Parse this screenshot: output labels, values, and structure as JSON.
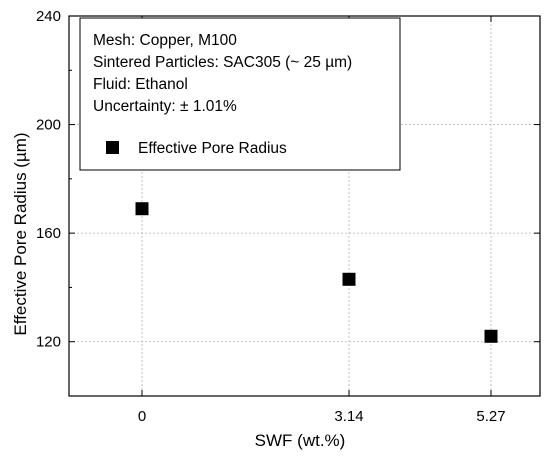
{
  "chart_data": {
    "type": "scatter",
    "title": "",
    "xlabel": "SWF (wt.%)",
    "ylabel": "Effective Pore Radius (µm)",
    "x_scale": "categorical-position",
    "x_ticks": [
      0,
      3.14,
      5.27
    ],
    "x_tick_labels": [
      "0",
      "3.14",
      "5.27"
    ],
    "xlim": [
      -2,
      7
    ],
    "ylim": [
      100,
      240
    ],
    "y_ticks": [
      120,
      160,
      200,
      240
    ],
    "y_tick_labels": [
      "120",
      "160",
      "200",
      "240"
    ],
    "grid": true,
    "legend_position": "top-left",
    "series": [
      {
        "name": "Effective Pore Radius",
        "marker": "square",
        "color": "#000000",
        "x": [
          0,
          3.14,
          5.27
        ],
        "y": [
          169,
          143,
          122
        ]
      }
    ],
    "annotation_lines": [
      "Mesh: Copper, M100",
      "Sintered Particles: SAC305 (~ 25 µm)",
      "Fluid: Ethanol",
      "Uncertainty: ± 1.01%"
    ]
  }
}
